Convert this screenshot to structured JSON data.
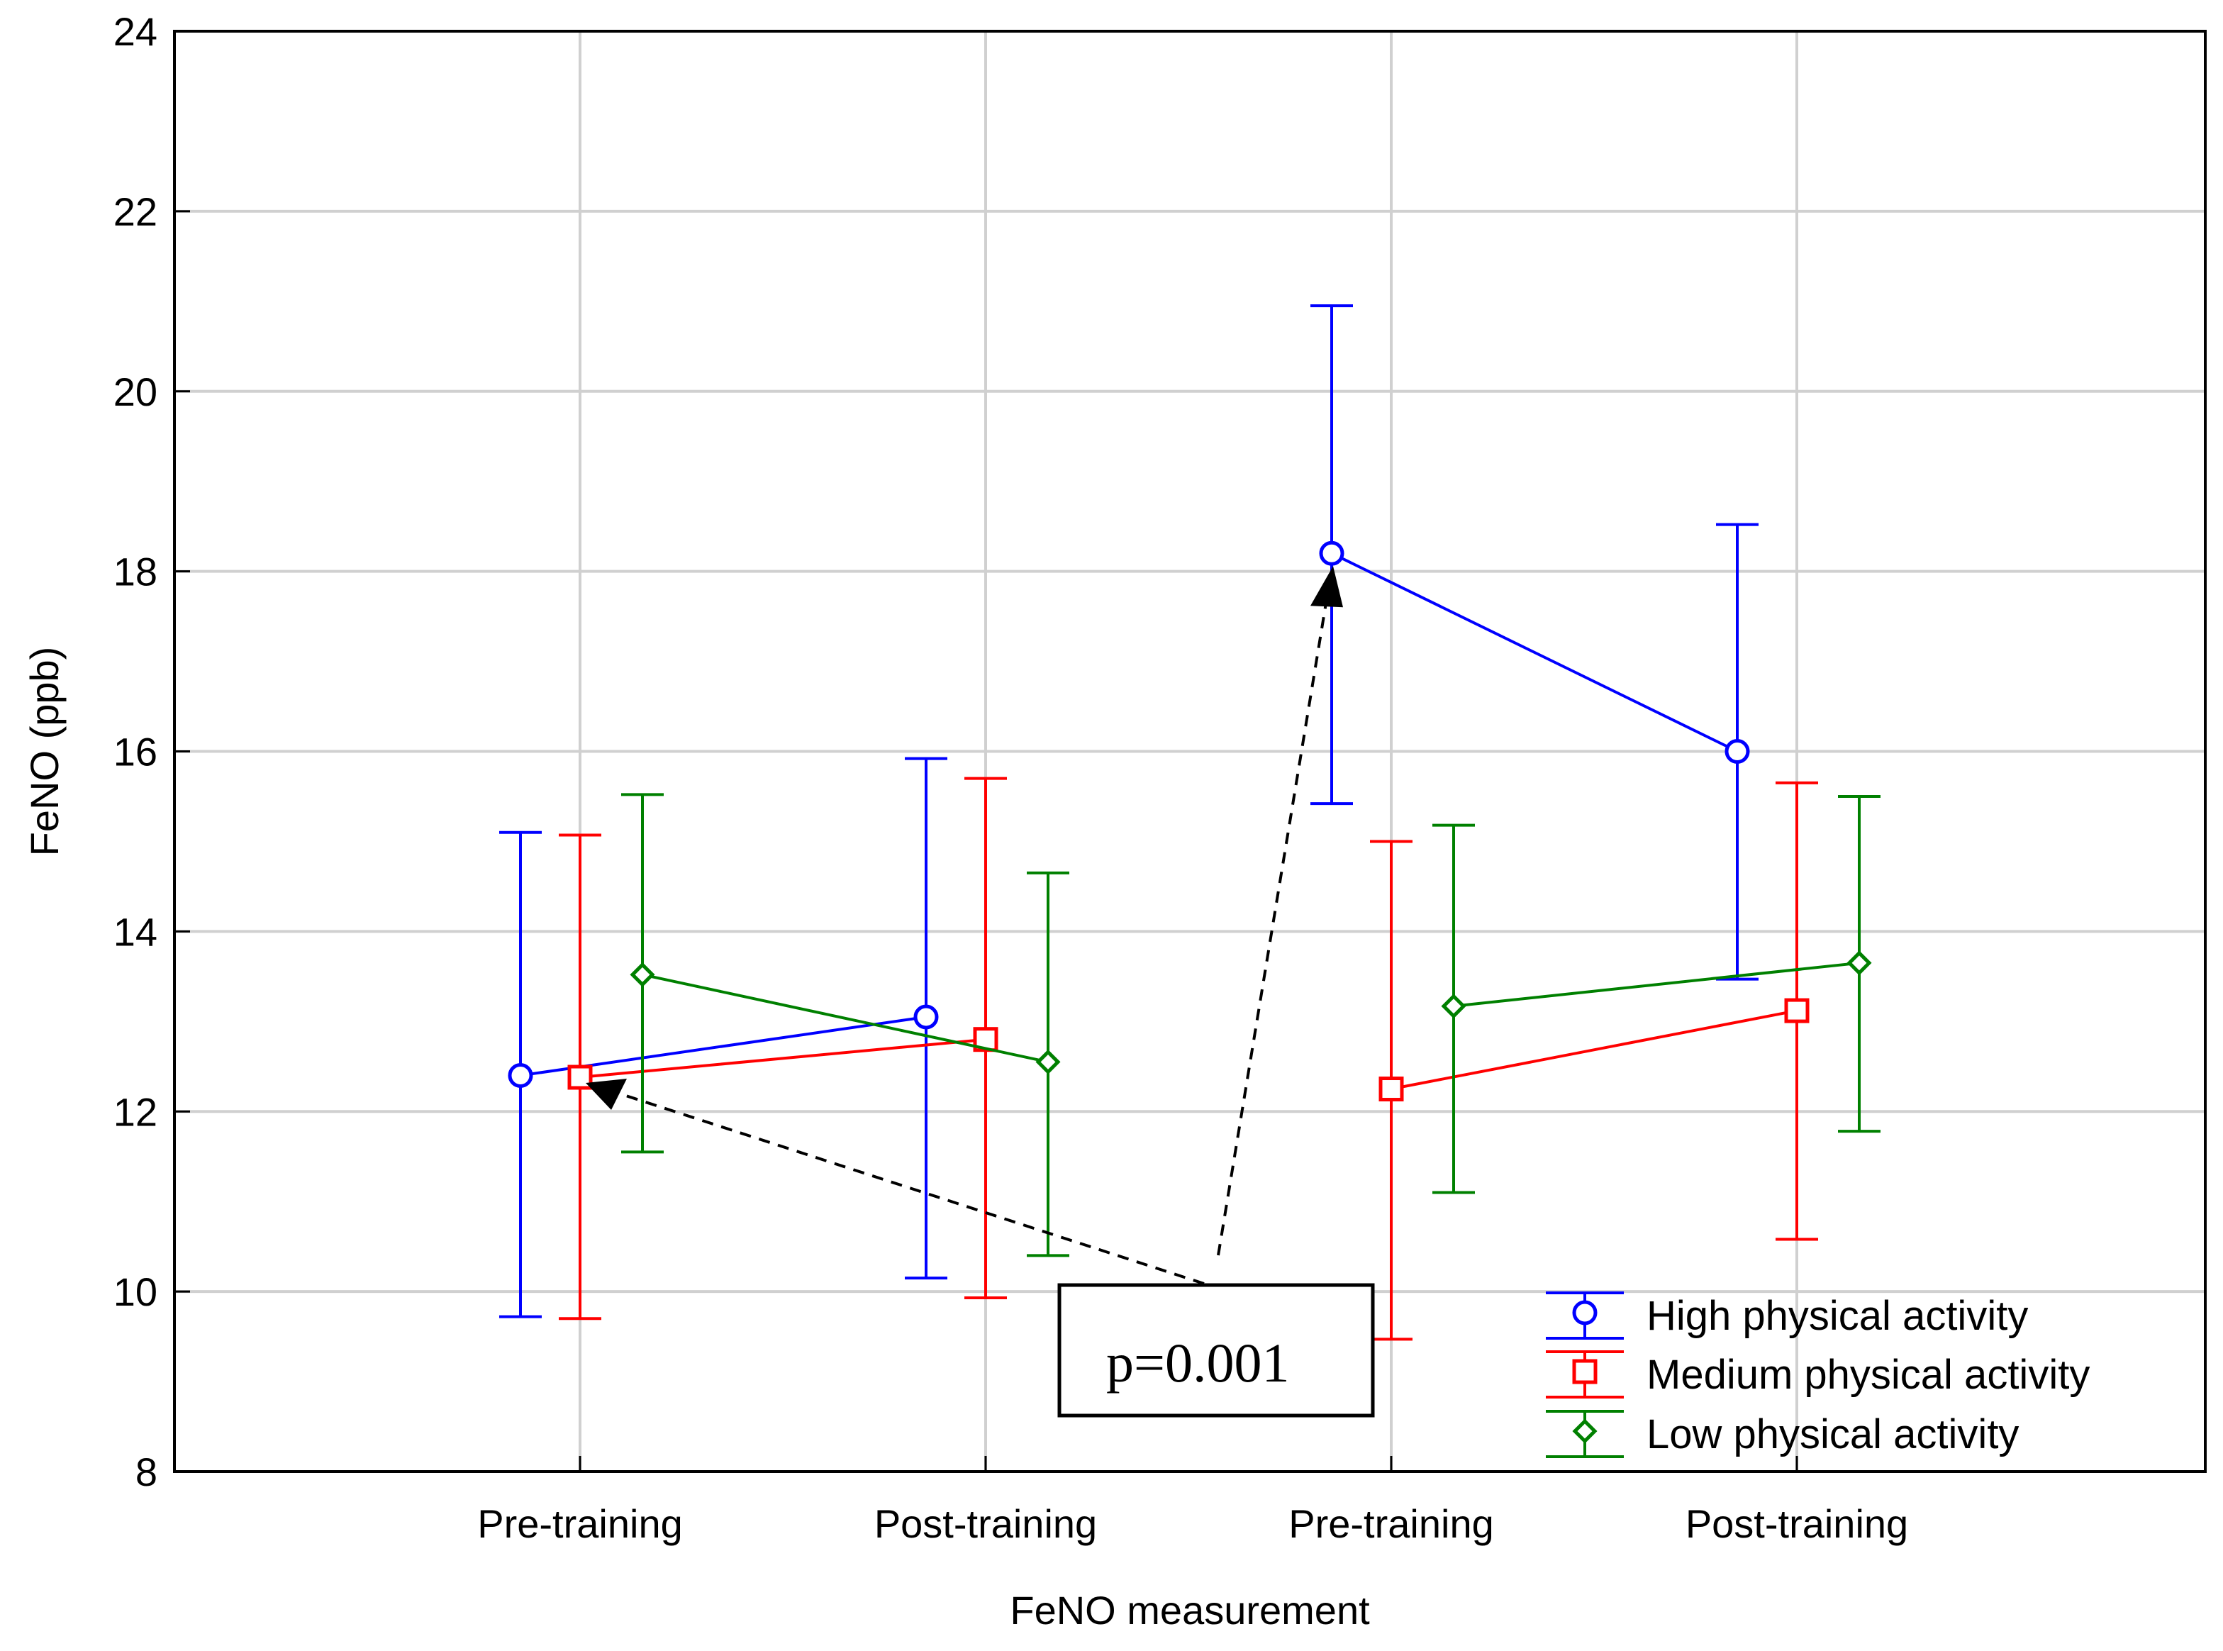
{
  "chart_data": {
    "type": "line",
    "title": "",
    "xlabel": "FeNO measurement",
    "ylabel": "FeNO (ppb)",
    "ylim": [
      8,
      24
    ],
    "yticks": [
      8,
      10,
      12,
      14,
      16,
      18,
      20,
      22,
      24
    ],
    "categories": [
      "Pre-training",
      "Post-training",
      "Pre-training",
      "Post-training"
    ],
    "grid": true,
    "legend_position": "bottom-right",
    "series": [
      {
        "name": "High physical activity",
        "color": "#0000ff",
        "marker": "circle",
        "values": [
          12.4,
          13.05,
          18.2,
          16.0
        ],
        "lower": [
          9.72,
          10.15,
          15.42,
          13.47
        ],
        "upper": [
          15.1,
          15.92,
          20.95,
          18.52
        ]
      },
      {
        "name": "Medium physical activity",
        "color": "#ff0000",
        "marker": "square",
        "values": [
          12.38,
          12.8,
          12.25,
          13.12
        ],
        "lower": [
          9.7,
          9.93,
          9.47,
          10.58
        ],
        "upper": [
          15.07,
          15.7,
          15.0,
          15.65
        ]
      },
      {
        "name": "Low physical activity",
        "color": "#008000",
        "marker": "diamond",
        "values": [
          13.52,
          12.55,
          13.17,
          13.65
        ],
        "lower": [
          11.55,
          10.4,
          11.1,
          11.78
        ],
        "upper": [
          15.52,
          14.65,
          15.18,
          15.5
        ]
      }
    ],
    "annotations": [
      {
        "text": "p=0.001"
      }
    ]
  }
}
